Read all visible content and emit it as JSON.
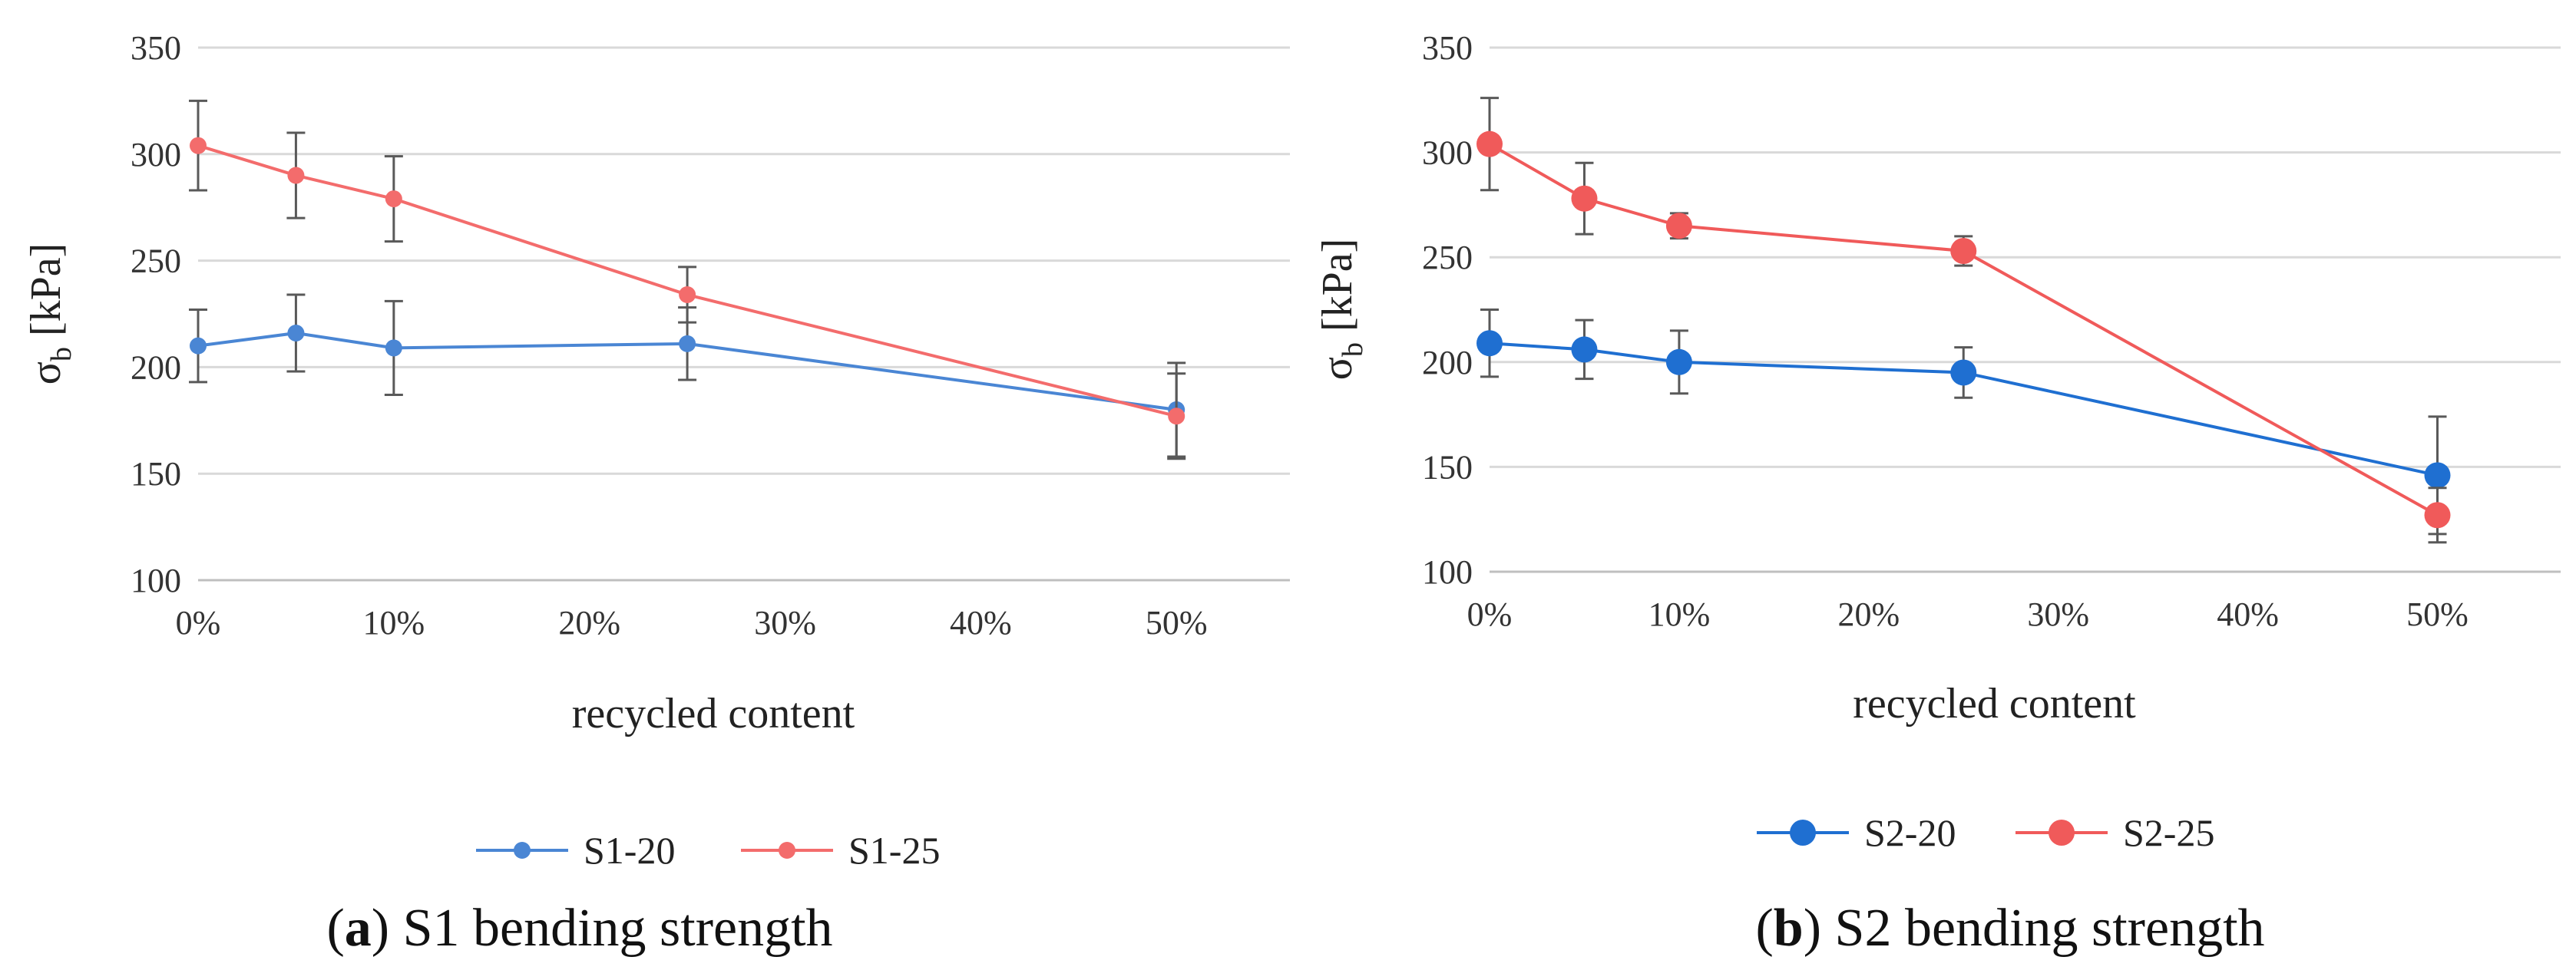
{
  "chart_data": [
    {
      "type": "line",
      "title": "",
      "xlabel": "recycled content",
      "ylabel_main": "σ",
      "ylabel_sub": "b",
      "ylabel_unit": " [kPa]",
      "x_ticks": [
        "0%",
        "10%",
        "20%",
        "30%",
        "40%",
        "50%"
      ],
      "x_tick_values": [
        0,
        10,
        20,
        30,
        40,
        50
      ],
      "xlim": [
        0,
        55.8
      ],
      "y_ticks": [
        100,
        150,
        200,
        250,
        300,
        350
      ],
      "ylim": [
        100,
        350
      ],
      "grid": true,
      "legend_placement": "bottom",
      "marker_size": "small",
      "series": [
        {
          "name": "S1-20",
          "color": "#4a86d4",
          "x": [
            0,
            5,
            10,
            25,
            50
          ],
          "y": [
            210,
            216,
            209,
            211,
            180
          ],
          "err": [
            17,
            18,
            22,
            17,
            22
          ]
        },
        {
          "name": "S1-25",
          "color": "#f36c6c",
          "x": [
            0,
            5,
            10,
            25,
            50
          ],
          "y": [
            304,
            290,
            279,
            234,
            177
          ],
          "err": [
            21,
            20,
            20,
            13,
            20
          ]
        }
      ],
      "caption_label": "a",
      "caption_open": "(",
      "caption_close": ")",
      "caption_text": " S1 bending strength"
    },
    {
      "type": "line",
      "title": "",
      "xlabel": "recycled content",
      "ylabel_main": "σ",
      "ylabel_sub": "b",
      "ylabel_unit": " [kPa]",
      "x_ticks": [
        "0%",
        "10%",
        "20%",
        "30%",
        "40%",
        "50%"
      ],
      "x_tick_values": [
        0,
        10,
        20,
        30,
        40,
        50
      ],
      "xlim": [
        0,
        56.5
      ],
      "y_ticks": [
        100,
        150,
        200,
        250,
        300,
        350
      ],
      "ylim": [
        100,
        350
      ],
      "grid": true,
      "legend_placement": "bottom",
      "marker_size": "large",
      "series": [
        {
          "name": "S2-20",
          "color": "#1f6fd1",
          "x": [
            0,
            5,
            10,
            25,
            50
          ],
          "y": [
            209,
            206,
            200,
            195,
            146
          ],
          "err": [
            16,
            14,
            15,
            12,
            28
          ]
        },
        {
          "name": "S2-25",
          "color": "#f05a5a",
          "x": [
            0,
            5,
            10,
            25,
            50
          ],
          "y": [
            304,
            278,
            265,
            253,
            127
          ],
          "err": [
            22,
            17,
            6,
            7,
            13
          ]
        }
      ],
      "caption_label": "b",
      "caption_open": "(",
      "caption_close": ")",
      "caption_text": " S2 bending strength"
    }
  ]
}
